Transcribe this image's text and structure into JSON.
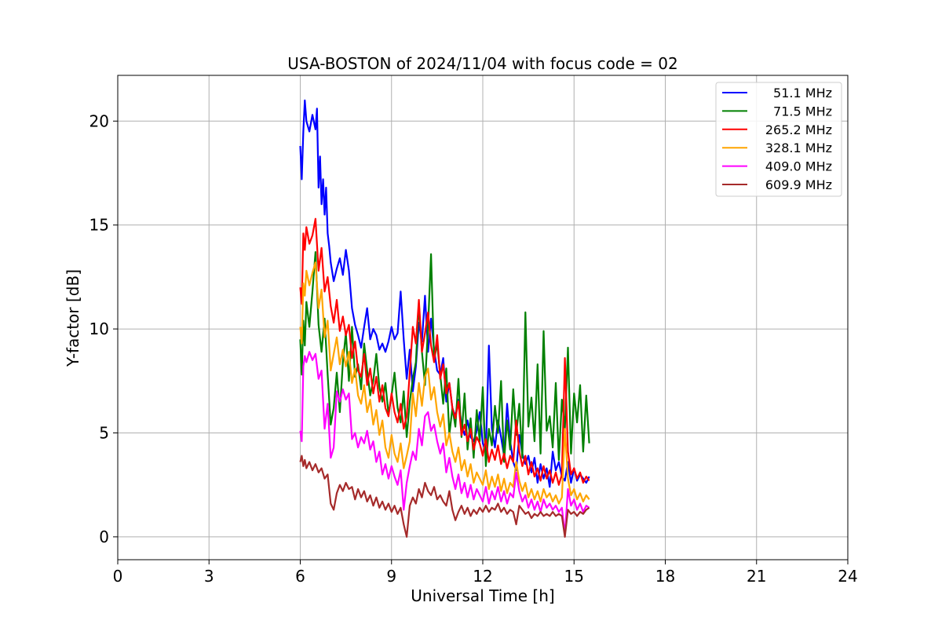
{
  "chart_data": {
    "type": "line",
    "title": "USA-BOSTON of 2024/11/04 with focus code = 02",
    "xlabel": "Universal Time [h]",
    "ylabel": "Y-factor [dB]",
    "xlim": [
      0,
      24
    ],
    "ylim": [
      -1.1,
      22.2
    ],
    "xticks": [
      0,
      3,
      6,
      9,
      12,
      15,
      18,
      21,
      24
    ],
    "yticks": [
      0,
      5,
      10,
      15,
      20
    ],
    "grid": true,
    "legend_position": "top-right",
    "series": [
      {
        "name": "51.1 MHz",
        "color": "#0000ff",
        "x": [
          6.0,
          6.05,
          6.1,
          6.15,
          6.2,
          6.3,
          6.4,
          6.5,
          6.55,
          6.6,
          6.65,
          6.7,
          6.75,
          6.8,
          6.85,
          6.9,
          6.95,
          7.0,
          7.1,
          7.2,
          7.3,
          7.4,
          7.5,
          7.6,
          7.7,
          7.8,
          7.9,
          8.0,
          8.1,
          8.2,
          8.3,
          8.4,
          8.5,
          8.6,
          8.7,
          8.8,
          8.9,
          9.0,
          9.1,
          9.2,
          9.3,
          9.4,
          9.5,
          9.6,
          9.7,
          9.8,
          9.9,
          10.0,
          10.1,
          10.2,
          10.3,
          10.4,
          10.5,
          10.6,
          10.7,
          10.8,
          10.9,
          11.0,
          11.1,
          11.2,
          11.3,
          11.4,
          11.5,
          11.6,
          11.7,
          11.8,
          11.9,
          12.0,
          12.1,
          12.2,
          12.3,
          12.4,
          12.5,
          12.6,
          12.7,
          12.8,
          12.9,
          13.0,
          13.1,
          13.2,
          13.3,
          13.4,
          13.5,
          13.6,
          13.7,
          13.8,
          13.9,
          14.0,
          14.1,
          14.2,
          14.3,
          14.4,
          14.5,
          14.6,
          14.7,
          14.8,
          14.9,
          15.0,
          15.1,
          15.2,
          15.3,
          15.4,
          15.5
        ],
        "y": [
          18.8,
          17.2,
          19.5,
          21.0,
          20.0,
          19.5,
          20.3,
          19.6,
          20.6,
          16.8,
          18.3,
          16.0,
          17.2,
          15.5,
          16.8,
          14.6,
          14.0,
          13.2,
          12.3,
          12.9,
          13.4,
          12.6,
          13.8,
          12.8,
          11.0,
          10.2,
          9.7,
          9.1,
          10.1,
          11.0,
          9.5,
          10.0,
          9.7,
          9.0,
          9.3,
          8.9,
          9.4,
          10.1,
          9.5,
          9.8,
          11.8,
          9.5,
          7.6,
          9.0,
          7.0,
          8.2,
          10.3,
          9.4,
          11.6,
          8.9,
          10.5,
          9.0,
          8.0,
          7.8,
          8.6,
          6.5,
          7.4,
          6.2,
          5.8,
          6.6,
          5.4,
          4.9,
          5.6,
          4.8,
          4.6,
          5.1,
          6.0,
          4.5,
          4.1,
          9.2,
          5.2,
          4.3,
          5.6,
          4.8,
          3.9,
          6.4,
          4.6,
          3.6,
          3.2,
          4.9,
          4.0,
          3.5,
          3.9,
          3.1,
          3.8,
          2.6,
          3.5,
          2.8,
          3.3,
          2.4,
          4.1,
          3.2,
          3.6,
          2.9,
          2.7,
          3.6,
          2.6,
          3.3,
          2.7,
          3.0,
          2.8,
          2.6,
          2.9
        ]
      },
      {
        "name": "71.5 MHz",
        "color": "#008000",
        "x": [
          6.0,
          6.05,
          6.1,
          6.15,
          6.2,
          6.3,
          6.4,
          6.5,
          6.6,
          6.7,
          6.8,
          6.9,
          7.0,
          7.1,
          7.2,
          7.3,
          7.4,
          7.5,
          7.6,
          7.7,
          7.8,
          7.9,
          8.0,
          8.1,
          8.2,
          8.3,
          8.4,
          8.5,
          8.6,
          8.7,
          8.8,
          8.9,
          9.0,
          9.1,
          9.2,
          9.3,
          9.4,
          9.5,
          9.6,
          9.7,
          9.8,
          9.9,
          10.0,
          10.1,
          10.2,
          10.3,
          10.4,
          10.5,
          10.6,
          10.7,
          10.8,
          10.9,
          11.0,
          11.1,
          11.2,
          11.3,
          11.4,
          11.5,
          11.6,
          11.7,
          11.8,
          11.9,
          12.0,
          12.1,
          12.2,
          12.3,
          12.4,
          12.5,
          12.6,
          12.7,
          12.8,
          12.9,
          13.0,
          13.1,
          13.2,
          13.3,
          13.4,
          13.5,
          13.6,
          13.7,
          13.8,
          13.9,
          14.0,
          14.1,
          14.2,
          14.3,
          14.4,
          14.5,
          14.6,
          14.7,
          14.8,
          14.9,
          15.0,
          15.1,
          15.2,
          15.3,
          15.4,
          15.5
        ],
        "y": [
          9.5,
          7.8,
          10.4,
          9.2,
          11.3,
          10.1,
          11.8,
          13.7,
          10.2,
          8.9,
          10.5,
          7.8,
          5.4,
          6.2,
          7.9,
          6.0,
          8.4,
          9.8,
          7.5,
          10.1,
          7.7,
          8.3,
          7.1,
          9.3,
          8.0,
          6.8,
          7.5,
          8.8,
          7.2,
          6.5,
          7.4,
          5.9,
          6.8,
          7.9,
          6.2,
          5.5,
          7.0,
          4.8,
          6.5,
          7.6,
          8.4,
          11.2,
          8.9,
          7.3,
          10.1,
          13.6,
          8.5,
          9.3,
          7.8,
          6.4,
          8.1,
          4.9,
          6.2,
          5.3,
          7.6,
          4.8,
          6.9,
          4.2,
          5.7,
          3.8,
          6.1,
          4.6,
          7.2,
          3.4,
          5.2,
          4.4,
          6.3,
          5.0,
          7.5,
          3.6,
          5.6,
          4.2,
          7.1,
          4.9,
          6.4,
          3.8,
          10.8,
          5.3,
          6.7,
          4.6,
          8.3,
          4.0,
          9.9,
          5.1,
          5.8,
          4.3,
          7.4,
          3.7,
          6.6,
          5.2,
          9.1,
          4.0,
          6.9,
          5.5,
          7.3,
          4.1,
          6.8,
          4.5
        ]
      },
      {
        "name": "265.2 MHz",
        "color": "#ff0000",
        "x": [
          6.0,
          6.05,
          6.1,
          6.15,
          6.2,
          6.3,
          6.4,
          6.5,
          6.6,
          6.7,
          6.8,
          6.9,
          7.0,
          7.1,
          7.2,
          7.3,
          7.4,
          7.5,
          7.6,
          7.7,
          7.8,
          7.9,
          8.0,
          8.1,
          8.2,
          8.3,
          8.4,
          8.5,
          8.6,
          8.7,
          8.8,
          8.9,
          9.0,
          9.1,
          9.2,
          9.3,
          9.4,
          9.5,
          9.6,
          9.7,
          9.8,
          9.9,
          10.0,
          10.1,
          10.2,
          10.3,
          10.4,
          10.5,
          10.6,
          10.7,
          10.8,
          10.9,
          11.0,
          11.1,
          11.2,
          11.3,
          11.4,
          11.5,
          11.6,
          11.7,
          11.8,
          11.9,
          12.0,
          12.1,
          12.2,
          12.3,
          12.4,
          12.5,
          12.6,
          12.7,
          12.8,
          12.9,
          13.0,
          13.1,
          13.2,
          13.3,
          13.4,
          13.5,
          13.6,
          13.7,
          13.8,
          13.9,
          14.0,
          14.1,
          14.2,
          14.3,
          14.4,
          14.5,
          14.6,
          14.7,
          14.8,
          14.9,
          15.0,
          15.1,
          15.2,
          15.3,
          15.4,
          15.5
        ],
        "y": [
          12.0,
          11.2,
          14.6,
          13.8,
          14.9,
          14.1,
          14.5,
          15.3,
          12.8,
          13.9,
          11.8,
          12.5,
          11.1,
          10.3,
          11.4,
          9.9,
          10.6,
          9.7,
          10.2,
          8.6,
          9.4,
          8.0,
          7.7,
          8.8,
          7.3,
          8.1,
          6.9,
          7.7,
          6.5,
          7.3,
          6.2,
          5.8,
          6.9,
          6.0,
          5.5,
          6.4,
          5.2,
          5.8,
          7.9,
          10.1,
          9.3,
          11.4,
          8.9,
          9.8,
          10.8,
          9.2,
          8.4,
          9.7,
          7.6,
          8.3,
          6.9,
          7.4,
          6.2,
          5.7,
          6.5,
          4.9,
          5.4,
          4.6,
          5.2,
          4.2,
          4.8,
          4.5,
          3.9,
          4.7,
          3.6,
          4.2,
          3.7,
          4.4,
          3.5,
          4.0,
          3.3,
          3.9,
          3.6,
          5.6,
          4.1,
          3.4,
          3.9,
          3.0,
          3.6,
          2.9,
          3.3,
          2.7,
          3.4,
          2.8,
          3.2,
          2.6,
          3.1,
          2.5,
          3.0,
          8.6,
          4.1,
          3.0,
          3.3,
          2.8,
          3.1,
          2.6,
          2.9,
          2.7
        ]
      },
      {
        "name": "328.1 MHz",
        "color": "#ffa500",
        "x": [
          6.0,
          6.05,
          6.1,
          6.15,
          6.2,
          6.3,
          6.4,
          6.5,
          6.6,
          6.7,
          6.8,
          6.9,
          7.0,
          7.1,
          7.2,
          7.3,
          7.4,
          7.5,
          7.6,
          7.7,
          7.8,
          7.9,
          8.0,
          8.1,
          8.2,
          8.3,
          8.4,
          8.5,
          8.6,
          8.7,
          8.8,
          8.9,
          9.0,
          9.1,
          9.2,
          9.3,
          9.4,
          9.5,
          9.6,
          9.7,
          9.8,
          9.9,
          10.0,
          10.1,
          10.2,
          10.3,
          10.4,
          10.5,
          10.6,
          10.7,
          10.8,
          10.9,
          11.0,
          11.1,
          11.2,
          11.3,
          11.4,
          11.5,
          11.6,
          11.7,
          11.8,
          11.9,
          12.0,
          12.1,
          12.2,
          12.3,
          12.4,
          12.5,
          12.6,
          12.7,
          12.8,
          12.9,
          13.0,
          13.1,
          13.2,
          13.3,
          13.4,
          13.5,
          13.6,
          13.7,
          13.8,
          13.9,
          14.0,
          14.1,
          14.2,
          14.3,
          14.4,
          14.5,
          14.6,
          14.7,
          14.8,
          14.9,
          15.0,
          15.1,
          15.2,
          15.3,
          15.4,
          15.5
        ],
        "y": [
          10.1,
          9.3,
          12.2,
          11.6,
          12.8,
          12.1,
          12.7,
          13.2,
          11.0,
          11.9,
          9.6,
          10.4,
          8.0,
          8.8,
          9.6,
          8.3,
          9.0,
          8.2,
          8.9,
          7.4,
          8.1,
          6.8,
          6.4,
          7.3,
          6.0,
          6.6,
          5.4,
          6.1,
          4.9,
          5.6,
          4.3,
          3.8,
          4.9,
          4.0,
          3.6,
          4.5,
          3.3,
          3.9,
          4.6,
          6.9,
          5.8,
          7.4,
          6.3,
          7.7,
          8.1,
          6.6,
          7.2,
          6.0,
          5.3,
          5.9,
          4.4,
          5.0,
          4.1,
          3.6,
          4.3,
          3.2,
          3.7,
          2.9,
          3.5,
          2.6,
          3.1,
          2.8,
          2.5,
          3.2,
          2.3,
          2.9,
          2.4,
          3.0,
          2.2,
          2.8,
          2.1,
          2.6,
          2.4,
          3.6,
          2.7,
          2.2,
          2.6,
          1.9,
          2.3,
          1.8,
          2.2,
          1.7,
          2.3,
          1.9,
          2.1,
          1.7,
          2.0,
          1.6,
          1.9,
          5.2,
          2.8,
          2.0,
          2.3,
          1.8,
          2.1,
          1.7,
          2.0,
          1.8
        ]
      },
      {
        "name": "409.0 MHz",
        "color": "#ff00ff",
        "x": [
          6.0,
          6.05,
          6.1,
          6.15,
          6.2,
          6.3,
          6.4,
          6.5,
          6.6,
          6.7,
          6.8,
          6.9,
          7.0,
          7.1,
          7.2,
          7.3,
          7.4,
          7.5,
          7.6,
          7.7,
          7.8,
          7.9,
          8.0,
          8.1,
          8.2,
          8.3,
          8.4,
          8.5,
          8.6,
          8.7,
          8.8,
          8.9,
          9.0,
          9.1,
          9.2,
          9.3,
          9.4,
          9.5,
          9.6,
          9.7,
          9.8,
          9.9,
          10.0,
          10.1,
          10.2,
          10.3,
          10.4,
          10.5,
          10.6,
          10.7,
          10.8,
          10.9,
          11.0,
          11.1,
          11.2,
          11.3,
          11.4,
          11.5,
          11.6,
          11.7,
          11.8,
          11.9,
          12.0,
          12.1,
          12.2,
          12.3,
          12.4,
          12.5,
          12.6,
          12.7,
          12.8,
          12.9,
          13.0,
          13.1,
          13.2,
          13.3,
          13.4,
          13.5,
          13.6,
          13.7,
          13.8,
          13.9,
          14.0,
          14.1,
          14.2,
          14.3,
          14.4,
          14.5,
          14.6,
          14.7,
          14.8,
          14.9,
          15.0,
          15.1,
          15.2,
          15.3,
          15.4,
          15.5
        ],
        "y": [
          5.1,
          4.6,
          8.2,
          8.7,
          8.4,
          8.9,
          8.5,
          8.8,
          7.6,
          8.0,
          5.2,
          6.4,
          3.8,
          4.3,
          7.0,
          6.5,
          7.1,
          6.6,
          6.9,
          4.7,
          5.0,
          4.3,
          4.8,
          4.5,
          5.1,
          4.2,
          4.6,
          3.6,
          4.1,
          3.0,
          3.5,
          2.8,
          3.4,
          2.9,
          2.5,
          3.2,
          1.3,
          2.6,
          3.4,
          4.1,
          3.7,
          5.2,
          4.4,
          5.8,
          6.0,
          5.1,
          5.4,
          4.6,
          4.0,
          4.5,
          3.1,
          3.8,
          2.9,
          2.3,
          3.0,
          2.1,
          2.6,
          1.9,
          2.5,
          1.8,
          2.3,
          2.0,
          1.7,
          2.4,
          1.6,
          2.2,
          1.8,
          2.4,
          1.7,
          2.2,
          1.6,
          2.1,
          1.9,
          3.1,
          2.2,
          1.7,
          2.0,
          1.4,
          1.8,
          1.3,
          1.7,
          1.2,
          1.8,
          1.4,
          1.6,
          1.3,
          1.5,
          1.2,
          1.4,
          0.1,
          2.3,
          1.5,
          1.8,
          1.3,
          1.6,
          1.2,
          1.5,
          1.4
        ]
      },
      {
        "name": "609.9 MHz",
        "color": "#a52a2a",
        "x": [
          6.0,
          6.05,
          6.1,
          6.15,
          6.2,
          6.3,
          6.4,
          6.5,
          6.6,
          6.7,
          6.8,
          6.9,
          7.0,
          7.1,
          7.2,
          7.3,
          7.4,
          7.5,
          7.6,
          7.7,
          7.8,
          7.9,
          8.0,
          8.1,
          8.2,
          8.3,
          8.4,
          8.5,
          8.6,
          8.7,
          8.8,
          8.9,
          9.0,
          9.1,
          9.2,
          9.3,
          9.4,
          9.5,
          9.6,
          9.7,
          9.8,
          9.9,
          10.0,
          10.1,
          10.2,
          10.3,
          10.4,
          10.5,
          10.6,
          10.7,
          10.8,
          10.9,
          11.0,
          11.1,
          11.2,
          11.3,
          11.4,
          11.5,
          11.6,
          11.7,
          11.8,
          11.9,
          12.0,
          12.1,
          12.2,
          12.3,
          12.4,
          12.5,
          12.6,
          12.7,
          12.8,
          12.9,
          13.0,
          13.1,
          13.2,
          13.3,
          13.4,
          13.5,
          13.6,
          13.7,
          13.8,
          13.9,
          14.0,
          14.1,
          14.2,
          14.3,
          14.4,
          14.5,
          14.6,
          14.7,
          14.8,
          14.9,
          15.0,
          15.1,
          15.2,
          15.3,
          15.4,
          15.5
        ],
        "y": [
          3.6,
          3.9,
          3.4,
          3.7,
          3.3,
          3.6,
          3.2,
          3.5,
          3.1,
          3.3,
          2.8,
          3.0,
          1.6,
          1.3,
          2.1,
          2.5,
          2.2,
          2.6,
          2.3,
          2.4,
          1.8,
          2.3,
          1.9,
          2.2,
          1.7,
          2.0,
          1.5,
          1.9,
          1.4,
          1.7,
          1.3,
          1.6,
          1.2,
          1.5,
          1.1,
          1.4,
          0.6,
          0.0,
          1.5,
          1.9,
          1.6,
          2.3,
          1.9,
          2.6,
          2.2,
          2.0,
          2.4,
          1.8,
          2.0,
          1.7,
          1.5,
          2.2,
          1.3,
          0.8,
          1.2,
          1.5,
          1.1,
          1.4,
          1.0,
          1.3,
          1.1,
          1.4,
          1.2,
          1.5,
          1.2,
          1.4,
          1.3,
          1.6,
          1.2,
          1.4,
          1.1,
          1.3,
          1.2,
          0.6,
          1.5,
          1.3,
          1.1,
          1.2,
          0.9,
          1.1,
          1.0,
          1.2,
          1.0,
          1.1,
          1.0,
          1.2,
          1.0,
          1.1,
          1.0,
          0.0,
          1.3,
          1.1,
          1.2,
          1.0,
          1.2,
          1.1,
          1.3,
          1.4
        ]
      }
    ]
  }
}
